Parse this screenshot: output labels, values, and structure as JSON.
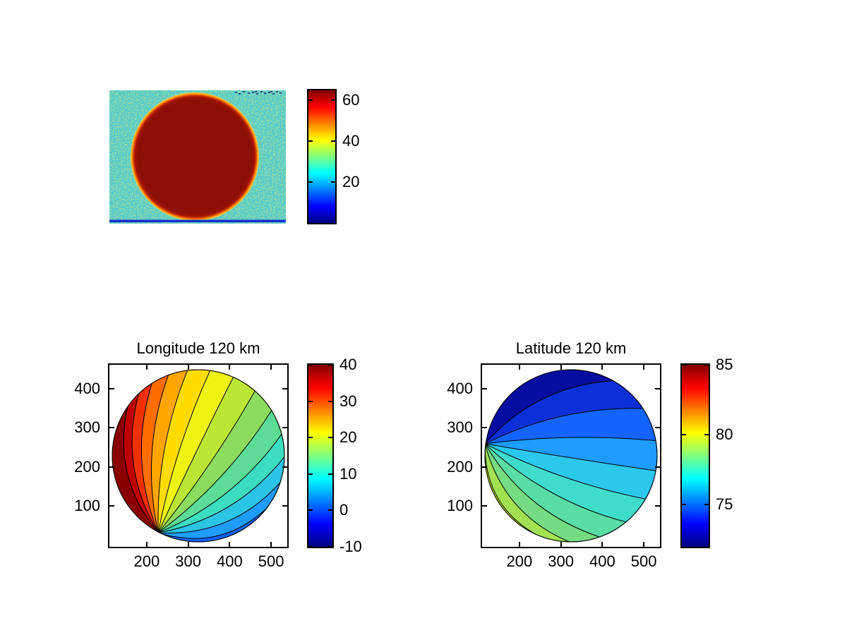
{
  "figure": {
    "background": "#FFFFFF"
  },
  "panels": {
    "image": {
      "description": "Saturated planetary disk image: uniform dark-red disk on noisy cyan background with yellow-orange limb ring and dark-blue bottom scanline",
      "background_color": "#3FC8DC",
      "disk_color": "#8C0F05",
      "rim_colors": [
        "#D93803",
        "#FF9100",
        "#F8D44A"
      ],
      "bottom_line_color": "#1830D0",
      "colorbar": {
        "tick_labels": [
          "60",
          "40",
          "20"
        ],
        "tick_values": [
          60,
          40,
          20
        ],
        "range_min": 0,
        "range_max": 65
      }
    },
    "longitude": {
      "title": "Longitude 120 km",
      "x_tick_labels": [
        "200",
        "300",
        "400",
        "500"
      ],
      "x_tick_values": [
        200,
        300,
        400,
        500
      ],
      "x_range": [
        110,
        539
      ],
      "y_tick_labels": [
        "100",
        "200",
        "300",
        "400"
      ],
      "y_tick_values": [
        100,
        200,
        300,
        400
      ],
      "y_range": [
        -5,
        462
      ],
      "colorbar": {
        "tick_labels": [
          "40",
          "30",
          "20",
          "10",
          "0",
          "-10"
        ],
        "tick_values": [
          40,
          30,
          20,
          10,
          0,
          -10
        ],
        "range_min": -10,
        "range_max": 40
      }
    },
    "latitude": {
      "title": "Latitude 120 km",
      "x_tick_labels": [
        "200",
        "300",
        "400",
        "500"
      ],
      "x_tick_values": [
        200,
        300,
        400,
        500
      ],
      "x_range": [
        110,
        539
      ],
      "y_tick_labels": [
        "100",
        "200",
        "300",
        "400"
      ],
      "y_tick_values": [
        100,
        200,
        300,
        400
      ],
      "y_range": [
        -5,
        462
      ],
      "colorbar": {
        "tick_labels": [
          "85",
          "80",
          "75"
        ],
        "tick_values": [
          85,
          80,
          75
        ],
        "range_min": 72,
        "range_max": 85
      }
    }
  },
  "jet_gradient_stops": [
    [
      "#000080",
      0
    ],
    [
      "#0000FF",
      12.5
    ],
    [
      "#00FFFF",
      37.5
    ],
    [
      "#FFFF00",
      62.5
    ],
    [
      "#FF0000",
      87.5
    ],
    [
      "#800000",
      100
    ]
  ],
  "chart_data": [
    {
      "type": "heatmap",
      "subplot": "top-left",
      "title": "",
      "colormap": "jet",
      "colorbar_ticks": [
        20,
        40,
        60
      ],
      "value_range": [
        0,
        65
      ],
      "content": "Planetary disk image: disk saturated dark red (value >= 60), background noisy cyan (values ~15-25) with green-yellow speckle, thin yellow/orange limb halo (~35-55), dark blue horizontal line (~5) along bottom edge, small dark noise marks near top-right"
    },
    {
      "type": "contour",
      "subplot": "bottom-left",
      "title": "Longitude 120 km",
      "xlabel": "",
      "ylabel": "",
      "x_ticks": [
        200,
        300,
        400,
        500
      ],
      "y_ticks": [
        100,
        200,
        300,
        400
      ],
      "x_range": [
        110,
        539
      ],
      "y_range": [
        -5,
        462
      ],
      "colormap": "jet",
      "colorbar_ticks": [
        40,
        30,
        20,
        10,
        0,
        -10
      ],
      "value_range": [
        -10,
        40
      ],
      "n_bands": 16,
      "content": "Filled contours of longitude (deg) over a circular planetary disk; meridian contours fan out from a pole on the lower-left limb (data x ~225, y ~20); values decrease from ~40 (dark red, left limb) to ~-10 (dark blue, right limb)",
      "contour_fan": {
        "pole_angle_deg": 117.5,
        "line_end_angles_deg": [
          216,
          227,
          238,
          250,
          263,
          278,
          294,
          311,
          328,
          345,
          360,
          377,
          395,
          418,
          443
        ],
        "bow_scale": 0.55,
        "base_color": "#8A0000",
        "band_colors": [
          "#C00000",
          "#F03000",
          "#FF6C00",
          "#FFA500",
          "#FFDC00",
          "#EDF212",
          "#BCE636",
          "#8CDC5F",
          "#5CDC96",
          "#3CDCC0",
          "#2CC4E4",
          "#1E9CFF",
          "#1464FF",
          "#0034E8",
          "#0016A8"
        ]
      }
    },
    {
      "type": "contour",
      "subplot": "bottom-right",
      "title": "Latitude 120 km",
      "xlabel": "",
      "ylabel": "",
      "x_ticks": [
        200,
        300,
        400,
        500
      ],
      "y_ticks": [
        100,
        200,
        300,
        400
      ],
      "x_range": [
        110,
        539
      ],
      "y_range": [
        -5,
        462
      ],
      "colormap": "jet",
      "colorbar_ticks": [
        85,
        80,
        75
      ],
      "value_range": [
        72,
        85
      ],
      "n_bands": 14,
      "content": "Filled contours of latitude (deg) over a circular planetary disk; contour arcs converge at the left limb (data x ~110, y ~290); values decrease from ~85 (red/orange, lower-left limb) to ~72 (dark blue, top and upper-right limb)",
      "contour_fan": {
        "pole_angle_deg": 188,
        "line_end_angles_deg": [
          300,
          327,
          350,
          370,
          390,
          410,
          430,
          450,
          470,
          492,
          513,
          528,
          539
        ],
        "bow_scale": 0.55,
        "base_color": "#060DA0",
        "band_colors": [
          "#0C30D8",
          "#1464FF",
          "#1E9CFF",
          "#2CC8EC",
          "#3FDCCC",
          "#5ADCA5",
          "#76DC82",
          "#A2E252",
          "#CFEC2A",
          "#F4F000",
          "#FFC300",
          "#FF7E00",
          "#E02800"
        ]
      }
    }
  ]
}
